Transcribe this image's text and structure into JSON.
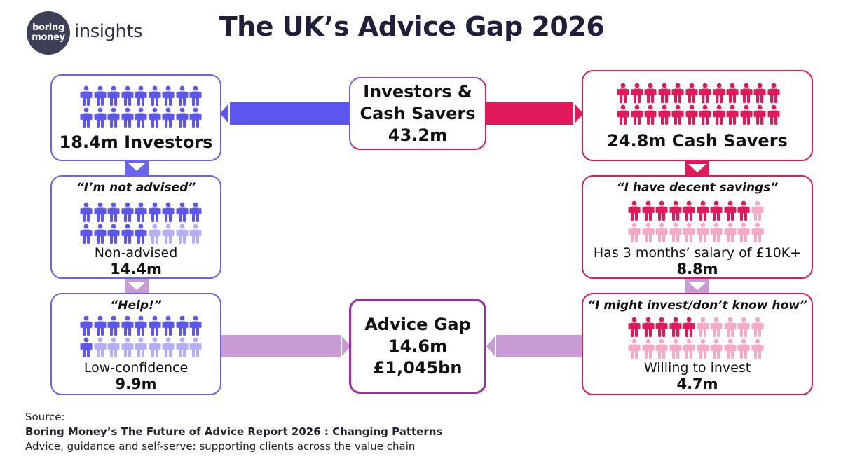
{
  "logo": {
    "line1": "boring",
    "line2": "money",
    "word": "insights"
  },
  "title": "The UK’s Advice Gap 2026",
  "colors": {
    "blue": "#5b57ee",
    "blue_light": "#b3aef6",
    "red": "#e0195b",
    "red_light": "#f4a9c4",
    "connector": "#c79bd4",
    "purple_border": "#9a2fa0"
  },
  "investors": {
    "label": "18.4m Investors",
    "value": 18.4
  },
  "total": {
    "line1": "Investors &",
    "line2": "Cash Savers",
    "value": "43.2m"
  },
  "cash_savers": {
    "label": "24.8m Cash Savers",
    "value": 24.8
  },
  "non_advised": {
    "quote": "“I’m not advised”",
    "label": "Non-advised",
    "value": "14.4m",
    "filled": 14,
    "total": 18
  },
  "low_confidence": {
    "quote": "“Help!”",
    "label": "Low-confidence",
    "value": "9.9m",
    "filled": 10,
    "total": 18
  },
  "decent_savings": {
    "quote": "“I have decent savings”",
    "label": "Has 3 months’ salary of £10K+",
    "value": "8.8m",
    "filled": 9,
    "total": 24
  },
  "willing": {
    "quote": "“I might invest/don’t know how”",
    "label": "Willing to invest",
    "value": "4.7m",
    "filled": 5,
    "total": 24
  },
  "advice_gap": {
    "title": "Advice Gap",
    "people": "14.6m",
    "assets": "£1,045bn"
  },
  "source": {
    "prefix": "Source:",
    "report": "Boring Money’s The Future of Advice Report 2026 : Changing Patterns",
    "subtitle": "Advice, guidance and self-serve: supporting clients across the value chain"
  }
}
